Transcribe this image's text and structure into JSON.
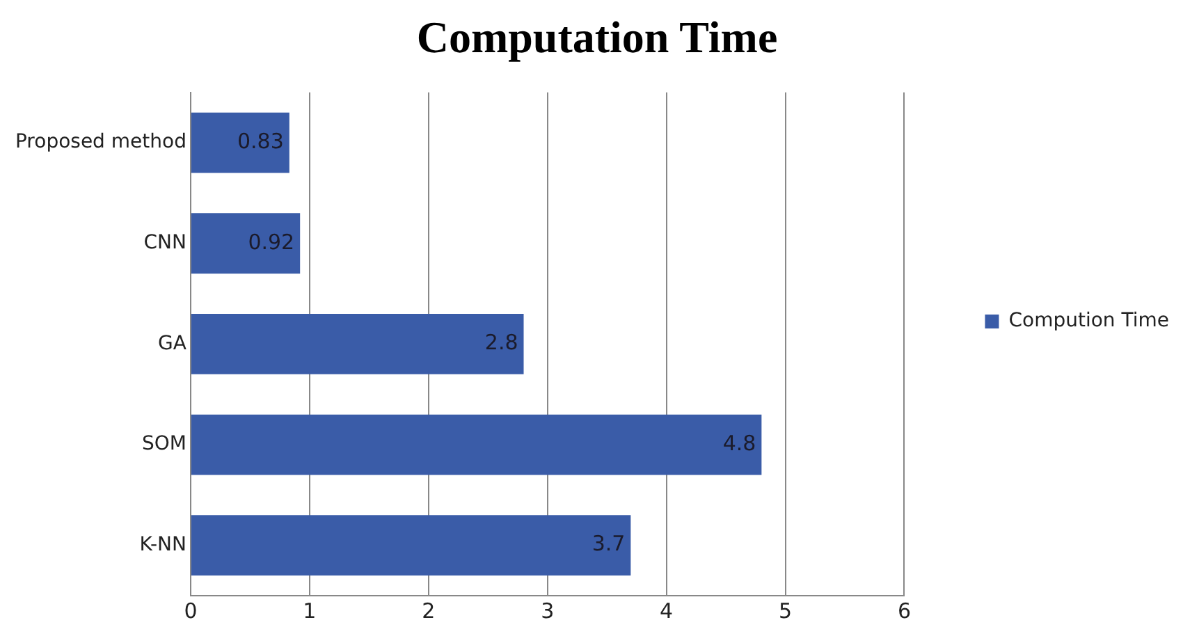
{
  "chart_data": {
    "type": "bar",
    "orientation": "horizontal",
    "title": "Computation Time",
    "categories": [
      "Proposed method",
      "CNN",
      "GA",
      "SOM",
      "K-NN"
    ],
    "series": [
      {
        "name": "Compution Time",
        "color": "#3a5ca8",
        "values": [
          0.83,
          0.92,
          2.8,
          4.8,
          3.7
        ]
      }
    ],
    "xlim": [
      0,
      6
    ],
    "xticks": [
      0,
      1,
      2,
      3,
      4,
      5,
      6
    ],
    "grid": "x",
    "legend": "right",
    "data_labels": true
  }
}
